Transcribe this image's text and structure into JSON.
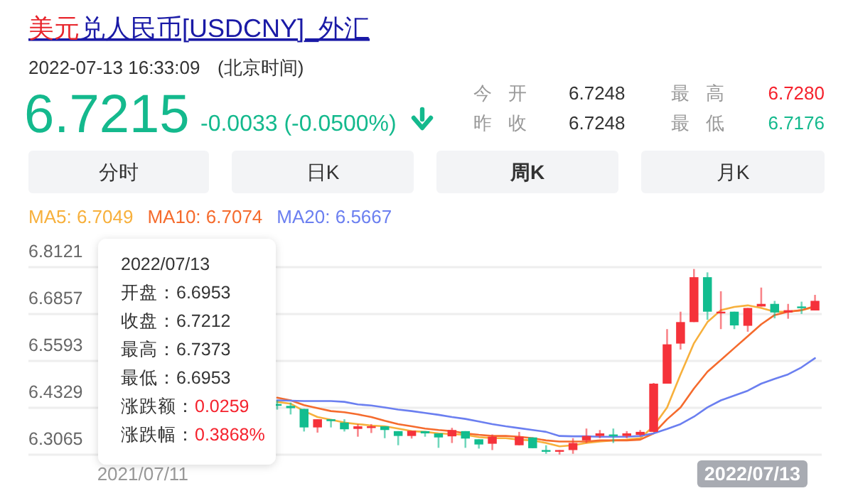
{
  "chart_data": [
    {
      "type": "other",
      "title": "美元兑人民币[USDCNY]_外汇",
      "annotations": [
        "2022-07-13 16:33:09",
        "(北京时间)",
        "6.7215",
        "-0.0033 (-0.0500%)",
        "今 开",
        "6.7248",
        "最 高",
        "6.7280",
        "昨 收",
        "6.7248",
        "最 低",
        "6.7176",
        "分时",
        "日K",
        "周K",
        "月K"
      ]
    },
    {
      "type": "candlestick",
      "categories": [
        null,
        null,
        null,
        null,
        null,
        null,
        null,
        null,
        "2021/07/11",
        null,
        null,
        null,
        null,
        null,
        null,
        null,
        null,
        null,
        null,
        null,
        null,
        null,
        null,
        null,
        null,
        null,
        null,
        null,
        null,
        null,
        null,
        null,
        null,
        null,
        null,
        null,
        null,
        null,
        null,
        null,
        null,
        null,
        null,
        null,
        null,
        null,
        null,
        null,
        null,
        null,
        null,
        null,
        null,
        null,
        null,
        null,
        null,
        null,
        null
      ],
      "ohlc": [
        null,
        null,
        null,
        null,
        null,
        null,
        null,
        null,
        null,
        null,
        null,
        null,
        null,
        null,
        null,
        null,
        null,
        null,
        [
          6.443,
          6.453,
          6.428,
          6.441
        ],
        [
          6.438,
          6.447,
          6.415,
          6.432
        ],
        [
          6.43,
          6.43,
          6.369,
          6.38
        ],
        [
          6.38,
          6.402,
          6.366,
          6.402
        ],
        [
          6.402,
          6.402,
          6.38,
          6.397
        ],
        [
          6.393,
          6.402,
          6.369,
          6.375
        ],
        [
          6.376,
          6.389,
          6.355,
          6.383
        ],
        [
          6.382,
          6.389,
          6.365,
          6.383
        ],
        [
          6.383,
          6.383,
          6.351,
          6.373
        ],
        [
          6.37,
          6.37,
          6.332,
          6.357
        ],
        [
          6.357,
          6.371,
          6.35,
          6.371
        ],
        [
          6.37,
          6.37,
          6.355,
          6.364
        ],
        [
          6.364,
          6.364,
          6.325,
          6.353
        ],
        [
          6.356,
          6.379,
          6.338,
          6.373
        ],
        [
          6.37,
          6.37,
          6.325,
          6.35
        ],
        [
          6.348,
          6.348,
          6.323,
          6.334
        ],
        [
          6.336,
          6.361,
          6.319,
          6.355
        ],
        null,
        [
          6.332,
          6.368,
          6.332,
          6.355
        ],
        [
          6.353,
          6.353,
          6.324,
          6.324
        ],
        [
          6.319,
          6.332,
          6.309,
          6.318
        ],
        [
          6.315,
          6.319,
          6.307,
          6.319
        ],
        [
          6.319,
          6.351,
          6.309,
          6.338
        ],
        [
          6.345,
          6.377,
          6.338,
          6.357
        ],
        [
          6.357,
          6.373,
          6.351,
          6.364
        ],
        [
          6.361,
          6.377,
          6.338,
          6.36
        ],
        [
          6.357,
          6.37,
          6.351,
          6.364
        ],
        [
          6.36,
          6.373,
          6.357,
          6.368
        ],
        [
          6.368,
          6.5,
          6.368,
          6.498
        ],
        [
          6.498,
          6.645,
          6.498,
          6.604
        ],
        [
          6.606,
          6.692,
          6.59,
          6.664
        ],
        [
          6.664,
          6.807,
          6.664,
          6.785
        ],
        [
          6.785,
          6.798,
          6.67,
          6.692
        ],
        [
          6.69,
          6.747,
          6.645,
          6.692
        ],
        [
          6.692,
          6.692,
          6.645,
          6.655
        ],
        [
          6.654,
          6.702,
          6.638,
          6.702
        ],
        [
          6.706,
          6.757,
          6.706,
          6.713
        ],
        [
          6.713,
          6.721,
          6.674,
          6.69
        ],
        [
          6.69,
          6.713,
          6.673,
          6.696
        ],
        [
          6.706,
          6.719,
          6.686,
          6.705
        ],
        [
          6.6953,
          6.7373,
          6.6953,
          6.7212
        ]
      ],
      "series": [
        {
          "name": "MA5: 6.7049",
          "type": "line",
          "color": "#f7b03c",
          "values": [
            null,
            null,
            null,
            null,
            null,
            null,
            null,
            null,
            null,
            null,
            null,
            null,
            null,
            null,
            null,
            null,
            null,
            null,
            6.449,
            6.444,
            6.424,
            6.408,
            6.401,
            6.393,
            6.389,
            6.385,
            6.383,
            6.377,
            6.37,
            6.368,
            6.364,
            6.362,
            6.36,
            6.354,
            6.351,
            6.351,
            6.347,
            6.345,
            6.338,
            6.329,
            6.332,
            6.338,
            6.342,
            6.345,
            6.347,
            6.351,
            6.383,
            6.434,
            6.523,
            6.607,
            6.664,
            6.696,
            6.705,
            6.709,
            6.702,
            6.692,
            6.692,
            6.696,
            6.7049
          ]
        },
        {
          "name": "MA10: 6.7074",
          "type": "line",
          "color": "#f56b2d",
          "values": [
            null,
            null,
            null,
            null,
            null,
            null,
            null,
            null,
            null,
            null,
            null,
            null,
            null,
            null,
            null,
            null,
            null,
            null,
            6.46,
            6.453,
            6.44,
            6.432,
            6.424,
            6.421,
            6.415,
            6.408,
            6.398,
            6.389,
            6.383,
            6.377,
            6.373,
            6.37,
            6.364,
            6.36,
            6.357,
            6.357,
            6.355,
            6.351,
            6.345,
            6.342,
            6.342,
            6.342,
            6.345,
            6.345,
            6.345,
            6.347,
            6.364,
            6.402,
            6.434,
            6.485,
            6.53,
            6.562,
            6.594,
            6.626,
            6.658,
            6.683,
            6.692,
            6.696,
            6.7074
          ]
        },
        {
          "name": "MA20: 6.5667",
          "type": "line",
          "color": "#6b7ff0",
          "values": [
            null,
            null,
            null,
            null,
            null,
            null,
            null,
            null,
            null,
            null,
            null,
            null,
            null,
            null,
            null,
            null,
            null,
            null,
            6.453,
            6.452,
            6.451,
            6.451,
            6.451,
            6.449,
            6.442,
            6.439,
            6.434,
            6.428,
            6.424,
            6.419,
            6.414,
            6.408,
            6.403,
            6.396,
            6.389,
            6.383,
            6.378,
            6.373,
            6.368,
            6.357,
            6.356,
            6.356,
            6.355,
            6.355,
            6.355,
            6.357,
            6.364,
            6.376,
            6.389,
            6.409,
            6.434,
            6.453,
            6.466,
            6.479,
            6.498,
            6.511,
            6.523,
            6.542,
            6.5667
          ]
        }
      ],
      "ylim": [
        6.3065,
        6.8121
      ],
      "yticks": [
        6.3065,
        6.4329,
        6.5593,
        6.6857,
        6.8121
      ],
      "grid": "y",
      "legend": "top",
      "marker": "none",
      "annotations": [
        "2022/07/13",
        "开盘：6.6953",
        "收盘：6.7212",
        "最高：6.7373",
        "最低：6.6953",
        "涨跌额：0.0259",
        "涨跌幅：0.3868%",
        "2022/07/13"
      ]
    }
  ]
}
